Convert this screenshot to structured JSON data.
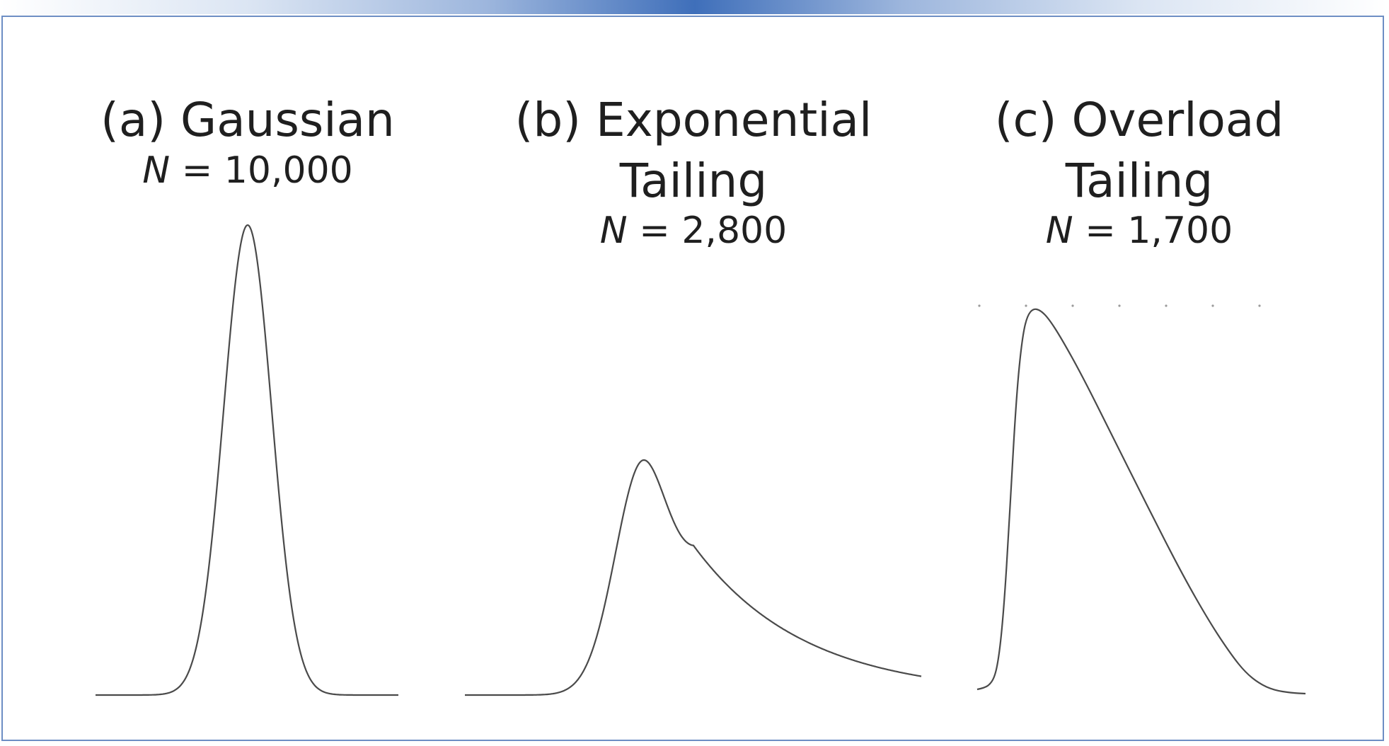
{
  "colors": {
    "curve": "#4a4a4a",
    "frame": "#6d8ec4",
    "accent": "#3f6fba",
    "text": "#1f1f1f"
  },
  "panels": [
    {
      "id": "a",
      "title_line1": "(a) Gaussian",
      "title_line2": "",
      "n_symbol": "N",
      "n_value": "= 10,000"
    },
    {
      "id": "b",
      "title_line1": "(b) Exponential",
      "title_line2": "Tailing",
      "n_symbol": "N",
      "n_value": "= 2,800"
    },
    {
      "id": "c",
      "title_line1": "(c) Overload",
      "title_line2": "Tailing",
      "n_symbol": "N",
      "n_value": "= 1,700"
    }
  ]
}
